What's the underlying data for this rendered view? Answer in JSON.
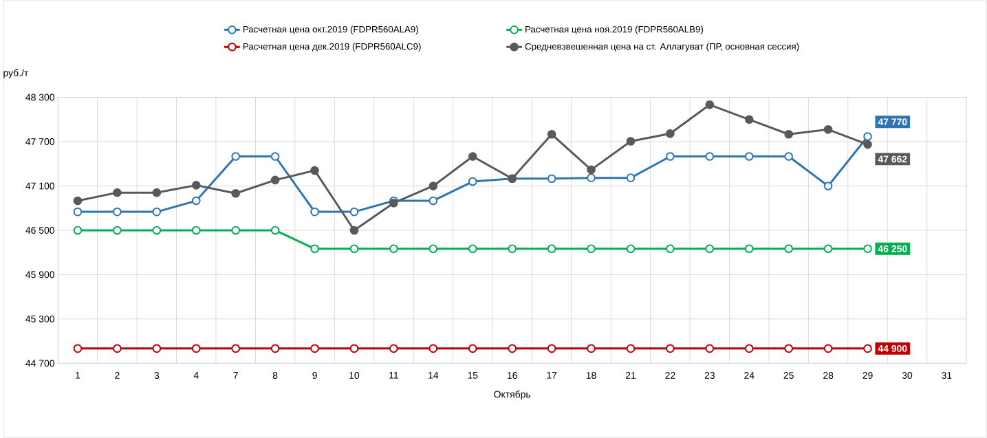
{
  "chart_data": {
    "type": "line",
    "xlabel": "Октябрь",
    "ylabel": "руб./т",
    "categories": [
      "1",
      "2",
      "3",
      "4",
      "7",
      "8",
      "9",
      "10",
      "11",
      "14",
      "15",
      "16",
      "17",
      "18",
      "21",
      "22",
      "23",
      "24",
      "25",
      "28",
      "29",
      "30",
      "31"
    ],
    "series": [
      {
        "name": "Расчетная цена окт.2019 (FDPR560ALA9)",
        "color": "#2e75b6",
        "marker": "circle",
        "values": [
          46750,
          46750,
          46750,
          46900,
          47500,
          47500,
          46750,
          46750,
          46900,
          46900,
          47160,
          47200,
          47200,
          47210,
          47210,
          47500,
          47500,
          47500,
          47500,
          47100,
          47770,
          null,
          null
        ],
        "value_labels": [
          null,
          null,
          null,
          null,
          null,
          null,
          null,
          null,
          null,
          null,
          null,
          null,
          null,
          null,
          null,
          null,
          null,
          null,
          null,
          null,
          "47 770",
          null,
          null
        ]
      },
      {
        "name": "Расчетная цена ноя.2019 (FDPR560ALB9)",
        "color": "#00b050",
        "marker": "circle",
        "values": [
          46500,
          46500,
          46500,
          46500,
          46500,
          46500,
          46250,
          46250,
          46250,
          46250,
          46250,
          46250,
          46250,
          46250,
          46250,
          46250,
          46250,
          46250,
          46250,
          46250,
          46250,
          null,
          null
        ],
        "value_labels": [
          null,
          null,
          null,
          null,
          null,
          null,
          null,
          null,
          null,
          null,
          null,
          null,
          null,
          null,
          null,
          null,
          null,
          null,
          null,
          null,
          "46 250",
          null,
          null
        ]
      },
      {
        "name": "Расчетная цена дек.2019 (FDPR560ALC9)",
        "color": "#c00000",
        "marker": "circle",
        "values": [
          44900,
          44900,
          44900,
          44900,
          44900,
          44900,
          44900,
          44900,
          44900,
          44900,
          44900,
          44900,
          44900,
          44900,
          44900,
          44900,
          44900,
          44900,
          44900,
          44900,
          44900,
          null,
          null
        ],
        "value_labels": [
          null,
          null,
          null,
          null,
          null,
          null,
          null,
          null,
          null,
          null,
          null,
          null,
          null,
          null,
          null,
          null,
          null,
          null,
          null,
          null,
          "44 900",
          null,
          null
        ]
      },
      {
        "name": "Средневзвешенная  цена на ст. Аллагуват (ПР, основная сессия)",
        "color": "#595959",
        "marker": "circle",
        "values": [
          46900,
          47010,
          47010,
          47110,
          47000,
          47180,
          47310,
          46500,
          46870,
          47100,
          47500,
          47200,
          47800,
          47320,
          47705,
          47810,
          48200,
          48000,
          47800,
          47865,
          47662,
          null,
          null
        ],
        "value_labels": [
          null,
          null,
          null,
          null,
          null,
          null,
          null,
          null,
          null,
          null,
          null,
          null,
          null,
          null,
          null,
          null,
          null,
          null,
          null,
          null,
          "47 662",
          null,
          null
        ]
      }
    ],
    "ylim": [
      44700,
      48300
    ],
    "yticks": [
      {
        "value": 44700,
        "label": "44 700"
      },
      {
        "value": 45300,
        "label": "45 300"
      },
      {
        "value": 45900,
        "label": "45 900"
      },
      {
        "value": 46500,
        "label": "46 500"
      },
      {
        "value": 47100,
        "label": "47 100"
      },
      {
        "value": 47700,
        "label": "47 700"
      },
      {
        "value": 48300,
        "label": "48 300"
      }
    ],
    "grid": true,
    "legend": "top",
    "line_style": "solid"
  }
}
